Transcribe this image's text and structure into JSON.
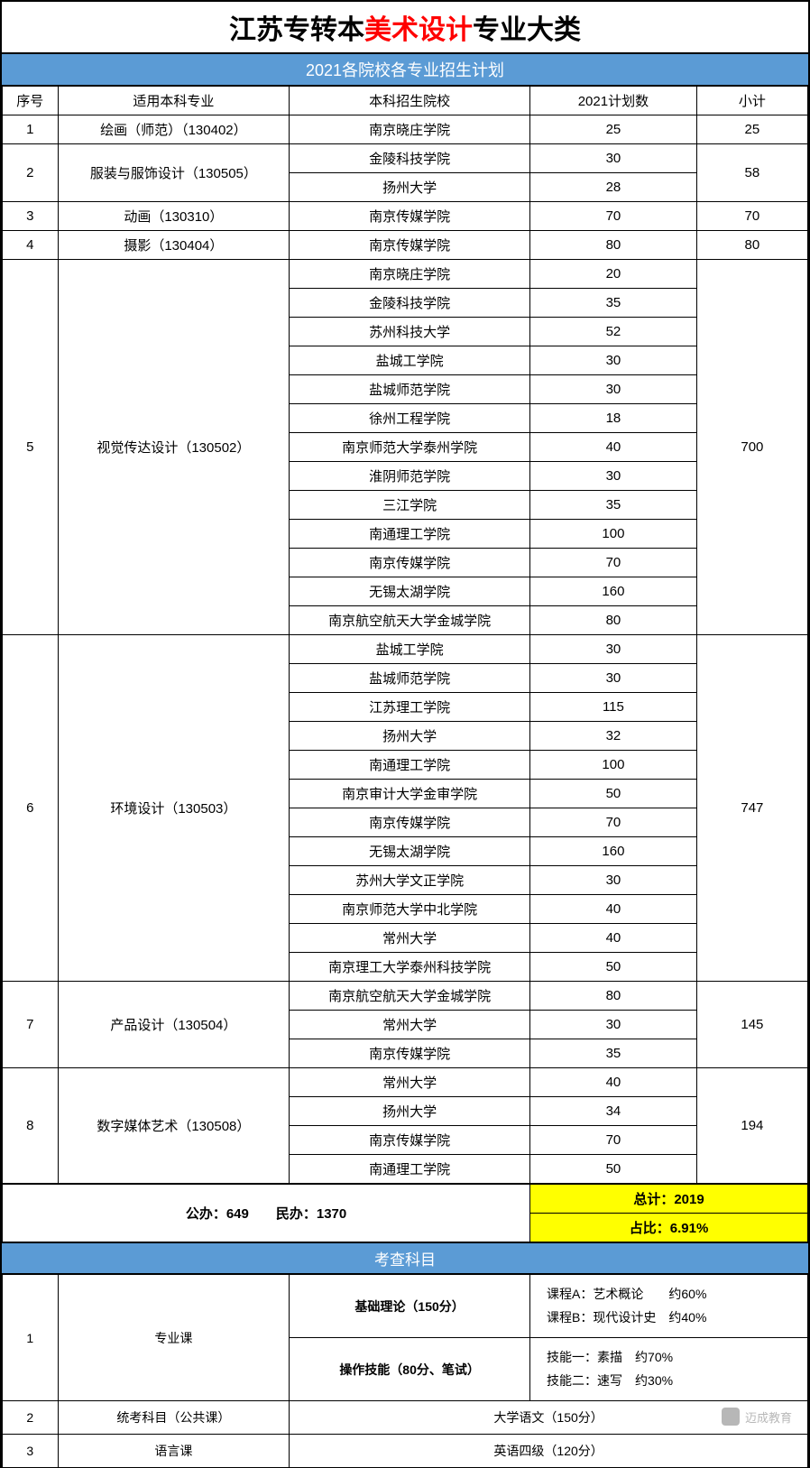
{
  "title": {
    "prefix": "江苏专转本",
    "highlight": "美术设计",
    "suffix": "专业大类"
  },
  "plan_header": "2021各院校各专业招生计划",
  "columns": {
    "seq": "序号",
    "major": "适用本科专业",
    "school": "本科招生院校",
    "plan": "2021计划数",
    "subtotal": "小计"
  },
  "rows": [
    {
      "seq": "1",
      "major": "绘画（师范）（130402）",
      "schools": [
        {
          "name": "南京晓庄学院",
          "plan": "25"
        }
      ],
      "subtotal": "25"
    },
    {
      "seq": "2",
      "major": "服装与服饰设计（130505）",
      "schools": [
        {
          "name": "金陵科技学院",
          "plan": "30"
        },
        {
          "name": "扬州大学",
          "plan": "28"
        }
      ],
      "subtotal": "58"
    },
    {
      "seq": "3",
      "major": "动画（130310）",
      "schools": [
        {
          "name": "南京传媒学院",
          "plan": "70"
        }
      ],
      "subtotal": "70"
    },
    {
      "seq": "4",
      "major": "摄影（130404）",
      "schools": [
        {
          "name": "南京传媒学院",
          "plan": "80"
        }
      ],
      "subtotal": "80"
    },
    {
      "seq": "5",
      "major": "视觉传达设计（130502）",
      "schools": [
        {
          "name": "南京晓庄学院",
          "plan": "20"
        },
        {
          "name": "金陵科技学院",
          "plan": "35"
        },
        {
          "name": "苏州科技大学",
          "plan": "52"
        },
        {
          "name": "盐城工学院",
          "plan": "30"
        },
        {
          "name": "盐城师范学院",
          "plan": "30"
        },
        {
          "name": "徐州工程学院",
          "plan": "18"
        },
        {
          "name": "南京师范大学泰州学院",
          "plan": "40"
        },
        {
          "name": "淮阴师范学院",
          "plan": "30"
        },
        {
          "name": "三江学院",
          "plan": "35"
        },
        {
          "name": "南通理工学院",
          "plan": "100"
        },
        {
          "name": "南京传媒学院",
          "plan": "70"
        },
        {
          "name": "无锡太湖学院",
          "plan": "160"
        },
        {
          "name": "南京航空航天大学金城学院",
          "plan": "80"
        }
      ],
      "subtotal": "700"
    },
    {
      "seq": "6",
      "major": "环境设计（130503）",
      "schools": [
        {
          "name": "盐城工学院",
          "plan": "30"
        },
        {
          "name": "盐城师范学院",
          "plan": "30"
        },
        {
          "name": "江苏理工学院",
          "plan": "115"
        },
        {
          "name": "扬州大学",
          "plan": "32"
        },
        {
          "name": "南通理工学院",
          "plan": "100"
        },
        {
          "name": "南京审计大学金审学院",
          "plan": "50"
        },
        {
          "name": "南京传媒学院",
          "plan": "70"
        },
        {
          "name": "无锡太湖学院",
          "plan": "160"
        },
        {
          "name": "苏州大学文正学院",
          "plan": "30"
        },
        {
          "name": "南京师范大学中北学院",
          "plan": "40"
        },
        {
          "name": "常州大学",
          "plan": "40"
        },
        {
          "name": "南京理工大学泰州科技学院",
          "plan": "50"
        }
      ],
      "subtotal": "747"
    },
    {
      "seq": "7",
      "major": "产品设计（130504）",
      "schools": [
        {
          "name": "南京航空航天大学金城学院",
          "plan": "80"
        },
        {
          "name": "常州大学",
          "plan": "30"
        },
        {
          "name": "南京传媒学院",
          "plan": "35"
        }
      ],
      "subtotal": "145"
    },
    {
      "seq": "8",
      "major": "数字媒体艺术（130508）",
      "schools": [
        {
          "name": "常州大学",
          "plan": "40"
        },
        {
          "name": "扬州大学",
          "plan": "34"
        },
        {
          "name": "南京传媒学院",
          "plan": "70"
        },
        {
          "name": "南通理工学院",
          "plan": "50"
        }
      ],
      "subtotal": "194"
    }
  ],
  "summary": {
    "left": "公办：649　　民办：1370",
    "total": "总计：2019",
    "ratio": "占比：6.91%"
  },
  "exam_header": "考查科目",
  "exam": [
    {
      "seq": "1",
      "subject": "专业课",
      "parts": [
        {
          "name": "基础理论（150分）",
          "detail": "课程A：艺术概论　　约60%\n课程B：现代设计史　约40%"
        },
        {
          "name": "操作技能（80分、笔试）",
          "detail": "技能一：素描　约70%\n技能二：速写　约30%"
        }
      ]
    },
    {
      "seq": "2",
      "subject": "统考科目（公共课）",
      "single": "大学语文（150分）"
    },
    {
      "seq": "3",
      "subject": "语言课",
      "single": "英语四级（120分）"
    }
  ],
  "brand": "迈成教育",
  "colors": {
    "header_bg": "#5b9bd5",
    "highlight_bg": "#ffff00",
    "title_red": "#ff0000",
    "border": "#000000"
  }
}
